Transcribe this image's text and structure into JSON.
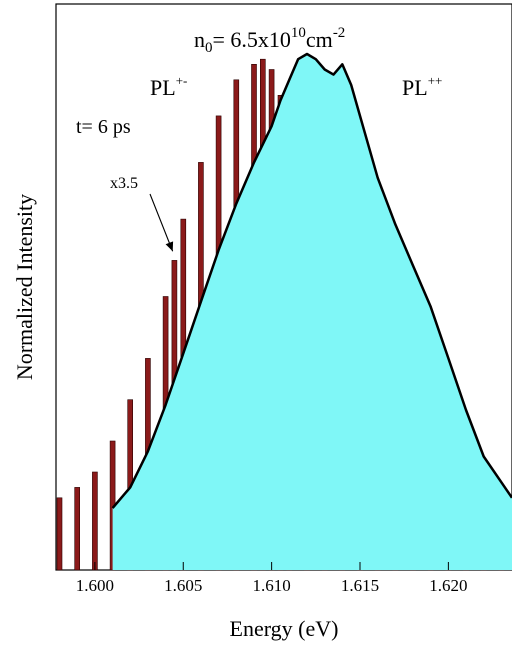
{
  "chart_data": {
    "type": "area",
    "xlabel": "Energy (eV)",
    "ylabel": "Normalized Intensity",
    "xlim": [
      1.5978,
      1.6236
    ],
    "ylim": [
      0,
      1.0
    ],
    "x_ticks": [
      "1.600",
      "1.605",
      "1.610",
      "1.615",
      "1.620"
    ],
    "x_tick_values": [
      1.6,
      1.605,
      1.61,
      1.615,
      1.62
    ],
    "grid": false,
    "annotations": {
      "density": "n",
      "density_sub": "0",
      "density_mid": "= 6.5x10",
      "density_exp": "10",
      "density_unit": "cm",
      "density_unit_exp": "-2",
      "pl_cross_base": "PL",
      "pl_cross_sup": "+-",
      "pl_co_base": "PL",
      "pl_co_sup": "++",
      "time": "t= 6 ps",
      "scale": "x3.5"
    },
    "series": [
      {
        "name": "PL+-",
        "style": "bars",
        "color": "#8b1a1a",
        "x": [
          1.598,
          1.599,
          1.6,
          1.601,
          1.602,
          1.603,
          1.604,
          1.6045,
          1.605,
          1.606,
          1.607,
          1.608,
          1.609,
          1.6095,
          1.61,
          1.6105,
          1.611,
          1.612,
          1.613,
          1.614,
          1.615,
          1.616,
          1.617,
          1.618,
          1.619,
          1.62,
          1.621,
          1.622,
          1.623
        ],
        "y": [
          0.14,
          0.16,
          0.19,
          0.25,
          0.33,
          0.41,
          0.53,
          0.6,
          0.68,
          0.79,
          0.88,
          0.95,
          0.98,
          0.99,
          0.97,
          0.92,
          0.84,
          0.76,
          0.7,
          0.62,
          0.55,
          0.48,
          0.4,
          0.34,
          0.29,
          0.24,
          0.18,
          0.12,
          0.1
        ]
      },
      {
        "name": "PL++",
        "style": "filled-line",
        "color": "#7ff7f7",
        "x": [
          1.601,
          1.602,
          1.603,
          1.604,
          1.605,
          1.606,
          1.607,
          1.608,
          1.609,
          1.61,
          1.6105,
          1.611,
          1.6115,
          1.612,
          1.6125,
          1.613,
          1.6135,
          1.614,
          1.6145,
          1.615,
          1.616,
          1.617,
          1.618,
          1.619,
          1.62,
          1.621,
          1.622,
          1.623,
          1.6236
        ],
        "y": [
          0.12,
          0.16,
          0.23,
          0.32,
          0.42,
          0.52,
          0.62,
          0.71,
          0.79,
          0.86,
          0.91,
          0.95,
          0.99,
          1.0,
          0.99,
          0.97,
          0.96,
          0.98,
          0.94,
          0.88,
          0.76,
          0.67,
          0.59,
          0.51,
          0.41,
          0.31,
          0.22,
          0.17,
          0.14
        ]
      }
    ]
  }
}
